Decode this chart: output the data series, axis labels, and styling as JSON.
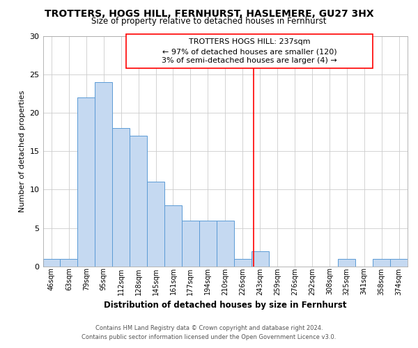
{
  "title": "TROTTERS, HOGS HILL, FERNHURST, HASLEMERE, GU27 3HX",
  "subtitle": "Size of property relative to detached houses in Fernhurst",
  "xlabel": "Distribution of detached houses by size in Fernhurst",
  "ylabel": "Number of detached properties",
  "bar_labels": [
    "46sqm",
    "63sqm",
    "79sqm",
    "95sqm",
    "112sqm",
    "128sqm",
    "145sqm",
    "161sqm",
    "177sqm",
    "194sqm",
    "210sqm",
    "226sqm",
    "243sqm",
    "259sqm",
    "276sqm",
    "292sqm",
    "308sqm",
    "325sqm",
    "341sqm",
    "358sqm",
    "374sqm"
  ],
  "bar_values": [
    1,
    1,
    22,
    24,
    18,
    17,
    11,
    8,
    6,
    6,
    6,
    1,
    2,
    0,
    0,
    0,
    0,
    1,
    0,
    1,
    1
  ],
  "bar_color": "#c5d9f1",
  "bar_edge_color": "#5b9bd5",
  "ylim": [
    0,
    30
  ],
  "yticks": [
    0,
    5,
    10,
    15,
    20,
    25,
    30
  ],
  "property_line_label": "TROTTERS HOGS HILL: 237sqm",
  "annotation_line1": "← 97% of detached houses are smaller (120)",
  "annotation_line2": "3% of semi-detached houses are larger (4) →",
  "footer_line1": "Contains HM Land Registry data © Crown copyright and database right 2024.",
  "footer_line2": "Contains public sector information licensed under the Open Government Licence v3.0.",
  "background_color": "#ffffff",
  "grid_color": "#cccccc"
}
